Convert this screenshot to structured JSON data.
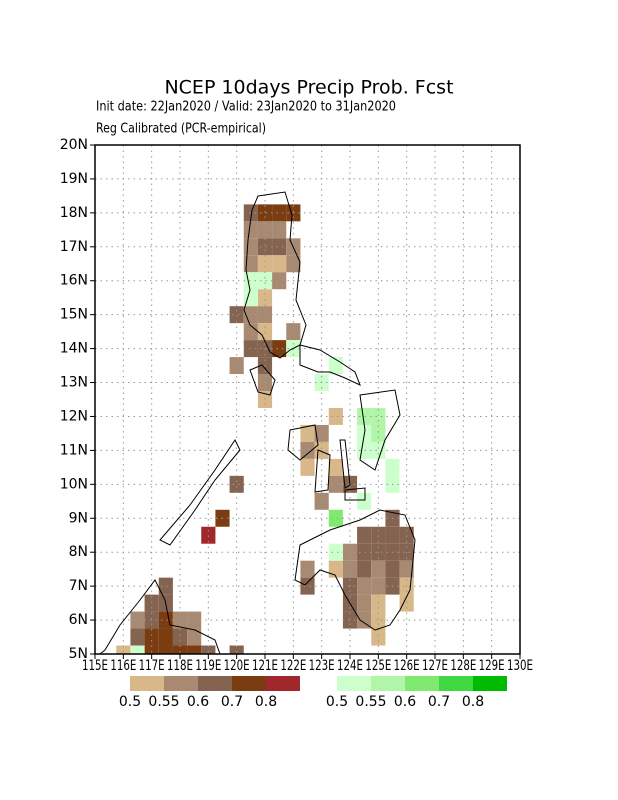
{
  "chart_data": {
    "type": "grid-map",
    "title": "NCEP 10days Precip Prob. Fcst",
    "subtitle": [
      "Init date: 22Jan2020 / Valid: 23Jan2020 to 31Jan2020",
      "Reg Calibrated (PCR-empirical)"
    ],
    "xlim": [
      115,
      130
    ],
    "ylim": [
      5,
      20
    ],
    "xticks": [
      {
        "value": 115,
        "label": "115E"
      },
      {
        "value": 116,
        "label": "116E"
      },
      {
        "value": 117,
        "label": "117E"
      },
      {
        "value": 118,
        "label": "118E"
      },
      {
        "value": 119,
        "label": "119E"
      },
      {
        "value": 120,
        "label": "120E"
      },
      {
        "value": 121,
        "label": "121E"
      },
      {
        "value": 122,
        "label": "122E"
      },
      {
        "value": 123,
        "label": "123E"
      },
      {
        "value": 124,
        "label": "124E"
      },
      {
        "value": 125,
        "label": "125E"
      },
      {
        "value": 126,
        "label": "126E"
      },
      {
        "value": 127,
        "label": "127E"
      },
      {
        "value": 128,
        "label": "128E"
      },
      {
        "value": 129,
        "label": "129E"
      },
      {
        "value": 130,
        "label": "130E"
      }
    ],
    "yticks": [
      {
        "value": 5,
        "label": "5N"
      },
      {
        "value": 6,
        "label": "6N"
      },
      {
        "value": 7,
        "label": "7N"
      },
      {
        "value": 8,
        "label": "8N"
      },
      {
        "value": 9,
        "label": "9N"
      },
      {
        "value": 10,
        "label": "10N"
      },
      {
        "value": 11,
        "label": "11N"
      },
      {
        "value": 12,
        "label": "12N"
      },
      {
        "value": 13,
        "label": "13N"
      },
      {
        "value": 14,
        "label": "14N"
      },
      {
        "value": 15,
        "label": "15N"
      },
      {
        "value": 16,
        "label": "16N"
      },
      {
        "value": 17,
        "label": "17N"
      },
      {
        "value": 18,
        "label": "18N"
      },
      {
        "value": 19,
        "label": "19N"
      },
      {
        "value": 20,
        "label": "20N"
      }
    ],
    "grid": true,
    "series": [
      {
        "levels": [
          0.5,
          0.55,
          0.6,
          0.7,
          0.8
        ],
        "colors": [
          "#d8b888",
          "#a88a72",
          "#846450",
          "#7a3c10",
          "#a0282c"
        ],
        "cells": [
          [
            120.5,
            18,
            0.6
          ],
          [
            121,
            18,
            0.7
          ],
          [
            121.5,
            18,
            0.7
          ],
          [
            122,
            18,
            0.7
          ],
          [
            120.5,
            17.5,
            0.55
          ],
          [
            121,
            17.5,
            0.55
          ],
          [
            121.5,
            17.5,
            0.55
          ],
          [
            120.5,
            17,
            0.55
          ],
          [
            121,
            17,
            0.6
          ],
          [
            121.5,
            17,
            0.6
          ],
          [
            122,
            17,
            0.55
          ],
          [
            120.5,
            16.5,
            0.55
          ],
          [
            121,
            16.5,
            0.5
          ],
          [
            121.5,
            16.5,
            0.5
          ],
          [
            122,
            16.5,
            0.55
          ],
          [
            121.5,
            16,
            0.55
          ],
          [
            121,
            15.5,
            0.5
          ],
          [
            120,
            15,
            0.6
          ],
          [
            120.5,
            15,
            0.55
          ],
          [
            121,
            15,
            0.55
          ],
          [
            120.5,
            14.5,
            0.55
          ],
          [
            121,
            14.5,
            0.5
          ],
          [
            122,
            14.5,
            0.55
          ],
          [
            120.5,
            14,
            0.6
          ],
          [
            121,
            14,
            0.6
          ],
          [
            121.5,
            14,
            0.7
          ],
          [
            120,
            13.5,
            0.55
          ],
          [
            121,
            13.5,
            0.6
          ],
          [
            121,
            13,
            0.55
          ],
          [
            121,
            12.5,
            0.5
          ],
          [
            123.5,
            12,
            0.5
          ],
          [
            122.5,
            11.5,
            0.5
          ],
          [
            123,
            11.5,
            0.55
          ],
          [
            122.5,
            11,
            0.55
          ],
          [
            123,
            11,
            0.5
          ],
          [
            122.5,
            10.5,
            0.5
          ],
          [
            123.5,
            10.5,
            0.5
          ],
          [
            123.5,
            10,
            0.55
          ],
          [
            124,
            10,
            0.6
          ],
          [
            123,
            9.5,
            0.55
          ],
          [
            125.5,
            9,
            0.6
          ],
          [
            124.5,
            8.5,
            0.6
          ],
          [
            125,
            8.5,
            0.6
          ],
          [
            125.5,
            8.5,
            0.6
          ],
          [
            126,
            8.5,
            0.6
          ],
          [
            124,
            8,
            0.55
          ],
          [
            124.5,
            8,
            0.6
          ],
          [
            125,
            8,
            0.6
          ],
          [
            125.5,
            8,
            0.6
          ],
          [
            126,
            8,
            0.6
          ],
          [
            122.5,
            7.5,
            0.55
          ],
          [
            123.5,
            7.5,
            0.5
          ],
          [
            124,
            7.5,
            0.55
          ],
          [
            124.5,
            7.5,
            0.6
          ],
          [
            125,
            7.5,
            0.55
          ],
          [
            125.5,
            7.5,
            0.6
          ],
          [
            126,
            7.5,
            0.55
          ],
          [
            122.5,
            7,
            0.6
          ],
          [
            124,
            7,
            0.6
          ],
          [
            124.5,
            7,
            0.55
          ],
          [
            125,
            7,
            0.55
          ],
          [
            125.5,
            7,
            0.6
          ],
          [
            126,
            7,
            0.5
          ],
          [
            124,
            6.5,
            0.6
          ],
          [
            124.5,
            6.5,
            0.55
          ],
          [
            125,
            6.5,
            0.5
          ],
          [
            126,
            6.5,
            0.5
          ],
          [
            124,
            6,
            0.6
          ],
          [
            124.5,
            6,
            0.55
          ],
          [
            125,
            6,
            0.5
          ],
          [
            125,
            5.5,
            0.5
          ],
          [
            119.5,
            9,
            0.7
          ],
          [
            119,
            8.5,
            0.8
          ],
          [
            120,
            10,
            0.6
          ],
          [
            117.5,
            7,
            0.6
          ],
          [
            117,
            6.5,
            0.6
          ],
          [
            117.5,
            6.5,
            0.6
          ],
          [
            116.5,
            6,
            0.55
          ],
          [
            117,
            6,
            0.6
          ],
          [
            117.5,
            6,
            0.7
          ],
          [
            118,
            6,
            0.55
          ],
          [
            118.5,
            6,
            0.55
          ],
          [
            116.5,
            5.5,
            0.6
          ],
          [
            117,
            5.5,
            0.7
          ],
          [
            117.5,
            5.5,
            0.7
          ],
          [
            118,
            5.5,
            0.6
          ],
          [
            118.5,
            5.5,
            0.55
          ],
          [
            116,
            5,
            0.5
          ],
          [
            117,
            5,
            0.7
          ],
          [
            117.5,
            5,
            0.7
          ],
          [
            118,
            5,
            0.7
          ],
          [
            118.5,
            5,
            0.7
          ],
          [
            119,
            5,
            0.6
          ],
          [
            120,
            5,
            0.6
          ]
        ]
      },
      {
        "levels": [
          0.5,
          0.55,
          0.6,
          0.7,
          0.8
        ],
        "colors": [
          "#ccffcc",
          "#b0f5a8",
          "#80ea70",
          "#40d840",
          "#00bb00"
        ],
        "cells": [
          [
            120.5,
            16,
            0.5
          ],
          [
            121,
            16,
            0.5
          ],
          [
            120.5,
            15.5,
            0.5
          ],
          [
            122,
            14,
            0.5
          ],
          [
            123.5,
            13.5,
            0.5
          ],
          [
            123,
            13,
            0.5
          ],
          [
            124.5,
            12,
            0.55
          ],
          [
            125,
            12,
            0.55
          ],
          [
            124.5,
            11.5,
            0.5
          ],
          [
            125,
            11.5,
            0.55
          ],
          [
            124.5,
            11,
            0.5
          ],
          [
            125,
            11,
            0.5
          ],
          [
            125.5,
            10.5,
            0.5
          ],
          [
            125.5,
            10,
            0.5
          ],
          [
            124.5,
            9.5,
            0.5
          ],
          [
            123.5,
            9,
            0.6
          ],
          [
            123.5,
            8,
            0.5
          ],
          [
            116.5,
            5,
            0.5
          ]
        ]
      }
    ]
  }
}
